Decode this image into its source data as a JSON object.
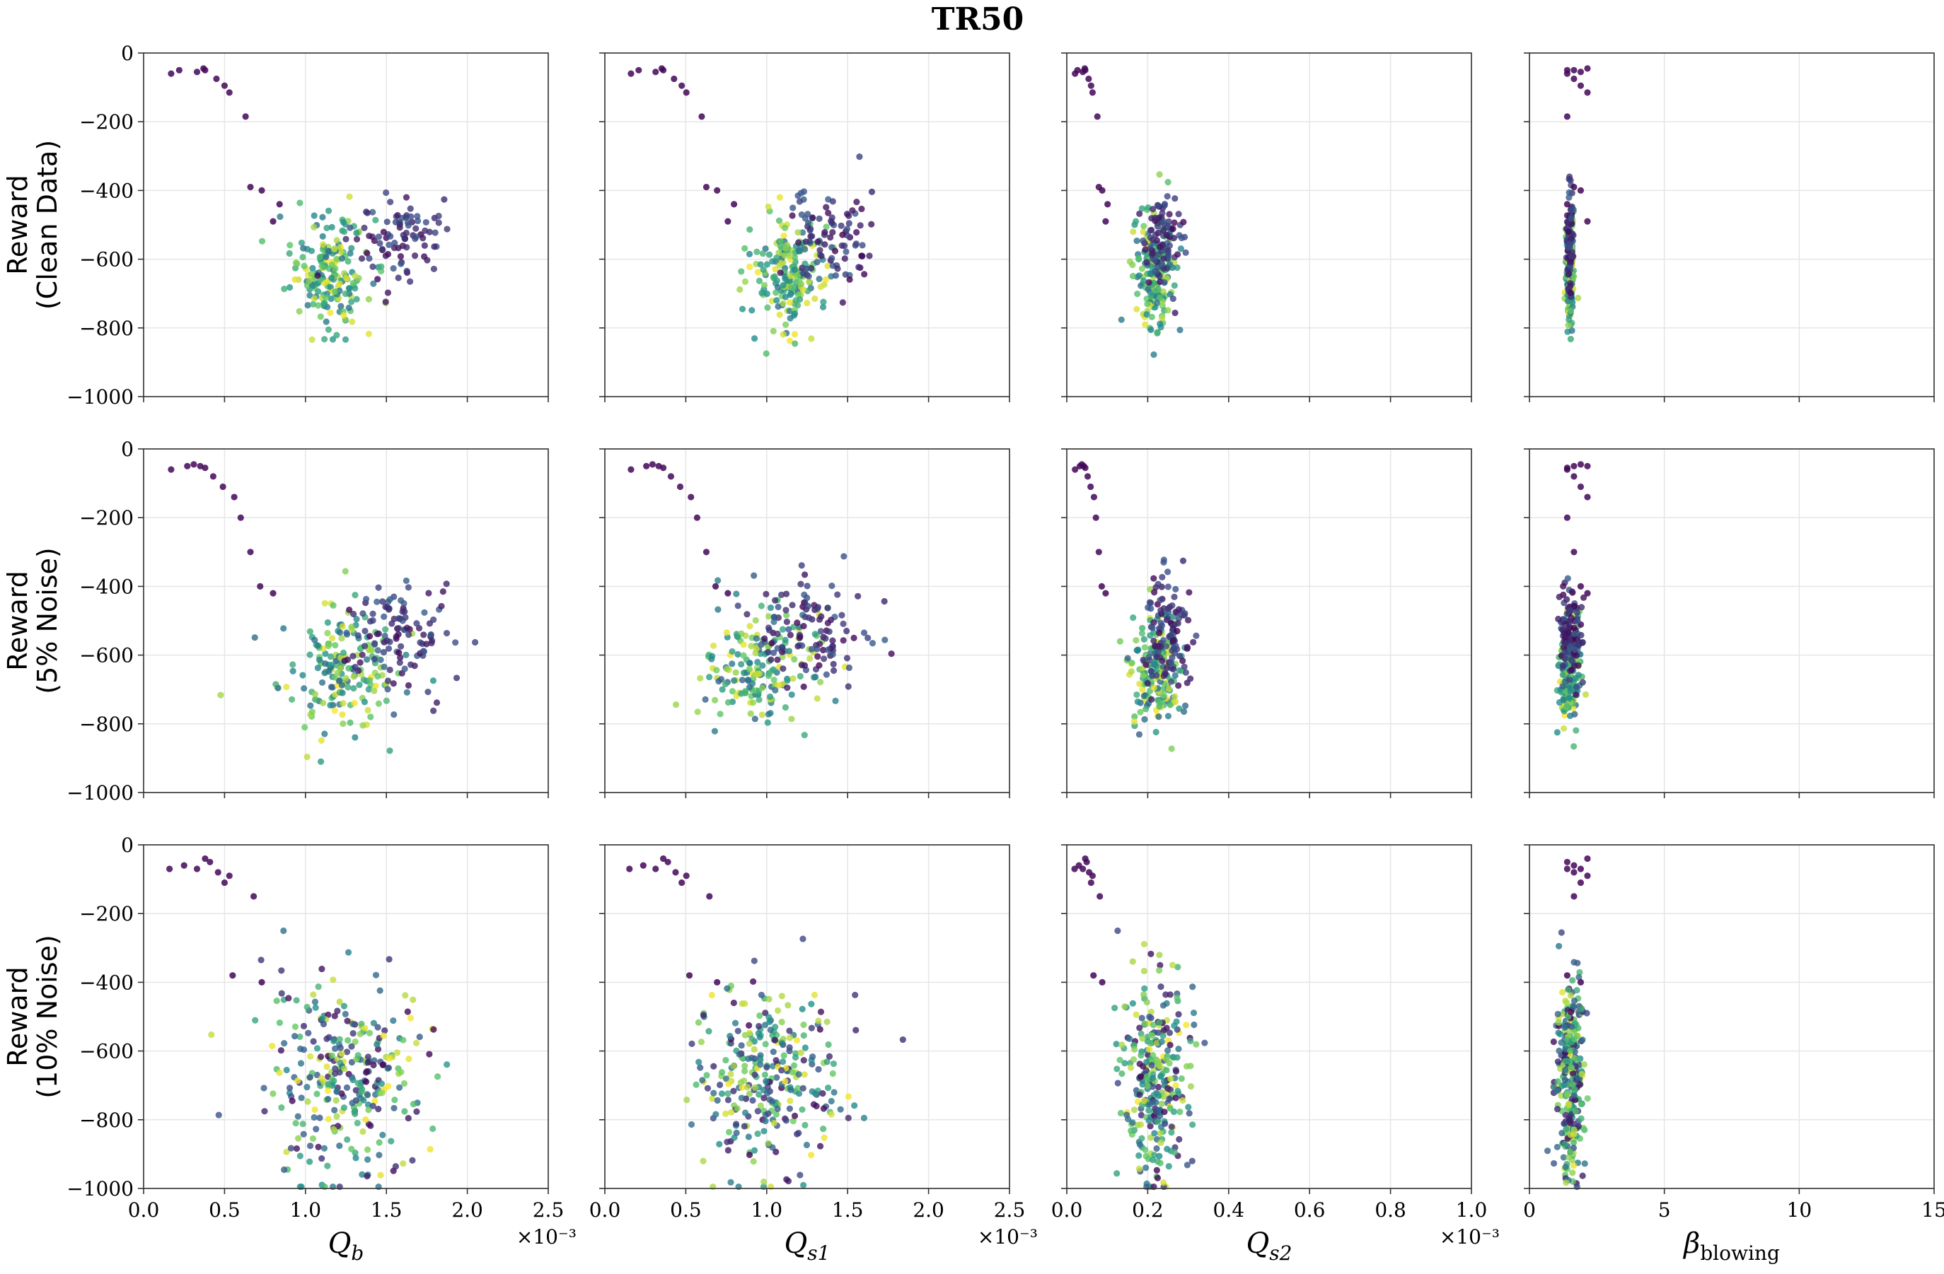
{
  "chart_data": {
    "type": "scatter",
    "title": "TR50",
    "row_labels": [
      {
        "line1": "Reward",
        "line2": "(Clean Data)"
      },
      {
        "line1": "Reward",
        "line2": "(5% Noise)"
      },
      {
        "line1": "Reward",
        "line2": "(10% Noise)"
      }
    ],
    "columns": [
      {
        "xlabel": "Q",
        "xsub": "b",
        "xlim": [
          0,
          2.5
        ],
        "xticks": [
          0.0,
          0.5,
          1.0,
          1.5,
          2.0,
          2.5
        ],
        "xtick_labels": [
          "0.0",
          "0.5",
          "1.0",
          "1.5",
          "2.0",
          "2.5"
        ],
        "offset_text": "×10⁻³"
      },
      {
        "xlabel": "Q",
        "xsub": "s1",
        "xlim": [
          0,
          2.5
        ],
        "xticks": [
          0.0,
          0.5,
          1.0,
          1.5,
          2.0,
          2.5
        ],
        "xtick_labels": [
          "0.0",
          "0.5",
          "1.0",
          "1.5",
          "2.0",
          "2.5"
        ],
        "offset_text": "×10⁻³"
      },
      {
        "xlabel": "Q",
        "xsub": "s2",
        "xlim": [
          0,
          1.0
        ],
        "xticks": [
          0.0,
          0.2,
          0.4,
          0.6,
          0.8,
          1.0
        ],
        "xtick_labels": [
          "0.0",
          "0.2",
          "0.4",
          "0.6",
          "0.8",
          "1.0"
        ],
        "offset_text": "×10⁻³"
      },
      {
        "xlabel": "β",
        "xsub": "blowing",
        "xlim": [
          0,
          15
        ],
        "xticks": [
          0,
          5,
          10,
          15
        ],
        "xtick_labels": [
          "0",
          "5",
          "10",
          "15"
        ],
        "offset_text": ""
      }
    ],
    "ylim": [
      -1000,
      0
    ],
    "yticks": [
      0,
      -200,
      -400,
      -600,
      -800,
      -1000
    ],
    "ytick_labels": [
      "0",
      "−200",
      "−400",
      "−600",
      "−800",
      "−1000"
    ],
    "grid": true,
    "colormap": [
      "#440154",
      "#3b528b",
      "#21918c",
      "#5ec962",
      "#fde725"
    ],
    "clusters": [
      {
        "row": 0,
        "center": [
          1.15,
          1.15,
          0.22,
          1.5
        ],
        "spread": [
          0.12,
          0.12,
          0.025,
          0.07
        ],
        "y_center": -640,
        "y_spread": 80,
        "count": 190,
        "color_range": [
          0.35,
          1.0
        ]
      },
      {
        "row": 0,
        "center": [
          1.55,
          1.4,
          0.24,
          1.5
        ],
        "spread": [
          0.14,
          0.13,
          0.025,
          0.06
        ],
        "y_center": -540,
        "y_spread": 70,
        "count": 90,
        "color_range": [
          0.0,
          0.3
        ]
      },
      {
        "row": 1,
        "center": [
          1.2,
          0.95,
          0.22,
          1.5
        ],
        "spread": [
          0.18,
          0.17,
          0.03,
          0.2
        ],
        "y_center": -640,
        "y_spread": 90,
        "count": 180,
        "color_range": [
          0.3,
          1.0
        ]
      },
      {
        "row": 1,
        "center": [
          1.55,
          1.3,
          0.25,
          1.5
        ],
        "spread": [
          0.18,
          0.18,
          0.03,
          0.2
        ],
        "y_center": -540,
        "y_spread": 80,
        "count": 110,
        "color_range": [
          0.0,
          0.3
        ]
      },
      {
        "row": 2,
        "center": [
          1.25,
          1.0,
          0.22,
          1.5
        ],
        "spread": [
          0.25,
          0.22,
          0.04,
          0.25
        ],
        "y_center": -680,
        "y_spread": 140,
        "count": 300,
        "color_range": [
          0.0,
          1.0
        ]
      }
    ],
    "trail_points": [
      {
        "row": 0,
        "x": [
          0.17,
          0.22,
          0.33,
          0.37,
          0.38,
          0.45,
          0.5,
          0.53,
          0.63,
          0.66,
          0.73,
          0.8,
          0.84
        ],
        "y": [
          -60,
          -50,
          -55,
          -45,
          -50,
          -75,
          -95,
          -115,
          -185,
          -390,
          -400,
          -490,
          -440
        ]
      },
      {
        "row": 1,
        "x": [
          0.17,
          0.27,
          0.31,
          0.35,
          0.38,
          0.43,
          0.49,
          0.56,
          0.6,
          0.66,
          0.72,
          0.8
        ],
        "y": [
          -60,
          -50,
          -45,
          -50,
          -55,
          -80,
          -110,
          -140,
          -200,
          -300,
          -400,
          -420
        ]
      },
      {
        "row": 2,
        "x": [
          0.16,
          0.25,
          0.33,
          0.38,
          0.41,
          0.46,
          0.5,
          0.53,
          0.55,
          0.68,
          0.73
        ],
        "y": [
          -70,
          -60,
          -70,
          -40,
          -50,
          -80,
          -110,
          -90,
          -380,
          -150,
          -400
        ]
      }
    ],
    "trail_x_scale": [
      1.0,
      0.95,
      0.12,
      0.0
    ],
    "trail_beta": 1.4
  }
}
